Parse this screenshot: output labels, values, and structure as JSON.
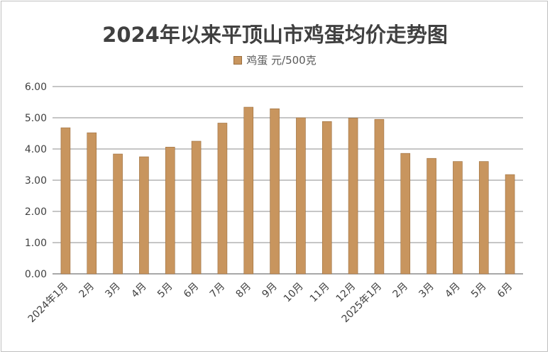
{
  "chart_data": {
    "type": "bar",
    "title": "2024年以来平顶山市鸡蛋均价走势图",
    "categories": [
      "2024年1月",
      "2月",
      "3月",
      "4月",
      "5月",
      "6月",
      "7月",
      "8月",
      "9月",
      "10月",
      "11月",
      "12月",
      "2025年1月",
      "2月",
      "3月",
      "4月",
      "5月",
      "6月"
    ],
    "series": [
      {
        "name": "鸡蛋 元/500克",
        "values": [
          4.68,
          4.52,
          3.84,
          3.75,
          4.06,
          4.25,
          4.83,
          5.34,
          5.29,
          5.0,
          4.88,
          4.99,
          4.95,
          3.86,
          3.7,
          3.6,
          3.6,
          3.18
        ]
      }
    ],
    "y_ticks": [
      "0.00",
      "1.00",
      "2.00",
      "3.00",
      "4.00",
      "5.00",
      "6.00"
    ],
    "ylim": [
      0,
      6
    ],
    "grid": true,
    "legend_position": "top-center",
    "bar_color": "#c8955e",
    "bar_border_color": "#9c6f3f",
    "grid_color": "#8c8c8c"
  }
}
